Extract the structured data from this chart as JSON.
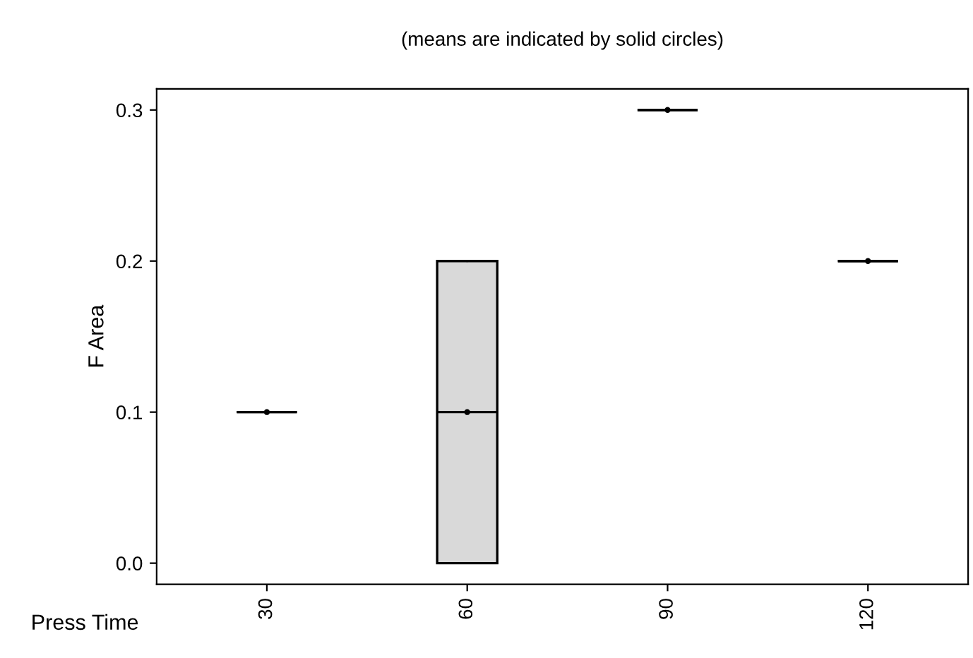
{
  "chart_data": {
    "type": "box",
    "title": "(means are indicated by solid circles)",
    "xlabel": "Press Time",
    "ylabel": "F Area",
    "categories": [
      "30",
      "60",
      "90",
      "120"
    ],
    "boxes": [
      {
        "low": 0.1,
        "q1": 0.1,
        "median": 0.1,
        "q3": 0.1,
        "high": 0.1,
        "mean": 0.1
      },
      {
        "low": 0.0,
        "q1": 0.0,
        "median": 0.1,
        "q3": 0.2,
        "high": 0.2,
        "mean": 0.1
      },
      {
        "low": 0.3,
        "q1": 0.3,
        "median": 0.3,
        "q3": 0.3,
        "high": 0.3,
        "mean": 0.3
      },
      {
        "low": 0.2,
        "q1": 0.2,
        "median": 0.2,
        "q3": 0.2,
        "high": 0.2,
        "mean": 0.2
      }
    ],
    "colors": [
      "#000000",
      "#d9d9d9",
      "#000000",
      "#000000"
    ],
    "ylim": [
      -0.014,
      0.314
    ],
    "yticks": [
      {
        "value": 0,
        "label": "0.0"
      },
      {
        "value": 0.1,
        "label": "0.1"
      },
      {
        "value": 0.2,
        "label": "0.2"
      },
      {
        "value": 0.3,
        "label": "0.3"
      }
    ],
    "grid": false,
    "legend": false
  }
}
